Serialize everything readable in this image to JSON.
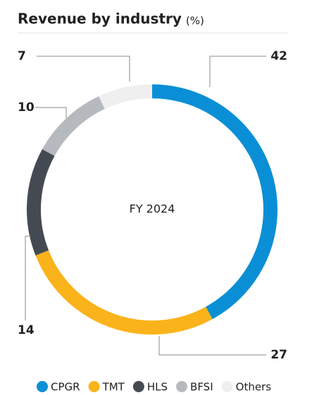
{
  "chart_data": {
    "type": "donut",
    "title": "Revenue by industry",
    "unit_label": "(%)",
    "center_label": "FY 2024",
    "categories": [
      "CPGR",
      "TMT",
      "HLS",
      "BFSI",
      "Others"
    ],
    "values": [
      42,
      27,
      14,
      10,
      7
    ],
    "colors": [
      "#0a8fd6",
      "#fbb31b",
      "#454a52",
      "#b6b9be",
      "#efefef"
    ]
  }
}
